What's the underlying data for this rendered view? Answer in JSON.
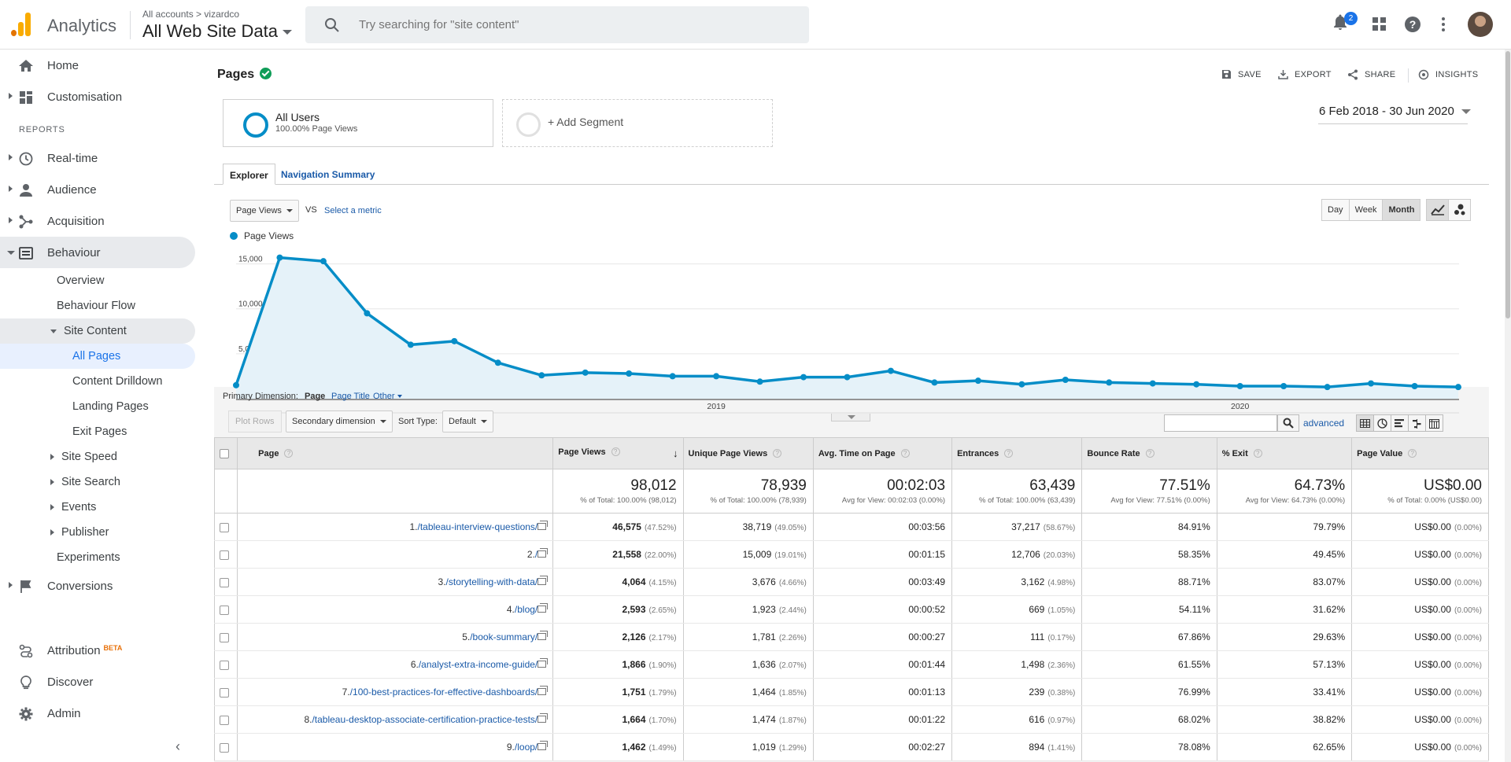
{
  "header": {
    "app_title": "Analytics",
    "breadcrumb_root": "All accounts",
    "breadcrumb_sep": ">",
    "breadcrumb_account": "vizardco",
    "property_view": "All Web Site Data",
    "search_placeholder": "Try searching for \"site content\"",
    "notification_count": "2"
  },
  "sidebar": {
    "home": "Home",
    "customisation": "Customisation",
    "reports_label": "REPORTS",
    "realtime": "Real-time",
    "audience": "Audience",
    "acquisition": "Acquisition",
    "behaviour": "Behaviour",
    "overview": "Overview",
    "behaviour_flow": "Behaviour Flow",
    "site_content": "Site Content",
    "all_pages": "All Pages",
    "content_drilldown": "Content Drilldown",
    "landing_pages": "Landing Pages",
    "exit_pages": "Exit Pages",
    "site_speed": "Site Speed",
    "site_search": "Site Search",
    "events": "Events",
    "publisher": "Publisher",
    "experiments": "Experiments",
    "conversions": "Conversions",
    "attribution": "Attribution",
    "attribution_badge": "BETA",
    "discover": "Discover",
    "admin": "Admin"
  },
  "report": {
    "title": "Pages",
    "save": "SAVE",
    "export": "EXPORT",
    "share": "SHARE",
    "insights": "INSIGHTS",
    "segment_title": "All Users",
    "segment_sub": "100.00% Page Views",
    "add_segment": "+ Add Segment",
    "date_range": "6 Feb 2018 - 30 Jun 2020",
    "tab_explorer": "Explorer",
    "tab_nav_summary": "Navigation Summary",
    "metric_select": "Page Views",
    "vs": "VS",
    "select_metric": "Select a metric",
    "btn_day": "Day",
    "btn_week": "Week",
    "btn_month": "Month",
    "legend": "Page Views",
    "primary_dim_label": "Primary Dimension:",
    "dim_page": "Page",
    "dim_page_title": "Page Title",
    "dim_other": "Other",
    "plot_rows": "Plot Rows",
    "secondary_dim": "Secondary dimension",
    "sort_type_label": "Sort Type:",
    "sort_type": "Default",
    "advanced": "advanced"
  },
  "chart_data": {
    "type": "area",
    "series": [
      {
        "name": "Page Views",
        "values": [
          1500,
          15700,
          15300,
          9500,
          6000,
          6400,
          4000,
          2600,
          2900,
          2800,
          2500,
          2500,
          1900,
          2400,
          2400,
          3100,
          1800,
          2000,
          1600,
          2100,
          1800,
          1700,
          1600,
          1400,
          1400,
          1300,
          1700,
          1400,
          1300
        ]
      }
    ],
    "y_ticks": [
      "15,000",
      "10,000",
      "5,000"
    ],
    "x_ticks": [
      "2019",
      "2020"
    ],
    "ylim": [
      0,
      17500
    ]
  },
  "table": {
    "headers": [
      "Page",
      "Page Views",
      "Unique Page Views",
      "Avg. Time on Page",
      "Entrances",
      "Bounce Rate",
      "% Exit",
      "Page Value"
    ],
    "totals": [
      {
        "big": "98,012",
        "small": "% of Total: 100.00% (98,012)"
      },
      {
        "big": "78,939",
        "small": "% of Total: 100.00% (78,939)"
      },
      {
        "big": "00:02:03",
        "small": "Avg for View: 00:02:03 (0.00%)"
      },
      {
        "big": "63,439",
        "small": "% of Total: 100.00% (63,439)"
      },
      {
        "big": "77.51%",
        "small": "Avg for View: 77.51% (0.00%)"
      },
      {
        "big": "64.73%",
        "small": "Avg for View: 64.73% (0.00%)"
      },
      {
        "big": "US$0.00",
        "small": "% of Total: 0.00% (US$0.00)"
      }
    ],
    "rows": [
      {
        "idx": "1.",
        "page": "/tableau-interview-questions/",
        "pv": "46,575",
        "pv_pct": "(47.52%)",
        "upv": "38,719",
        "upv_pct": "(49.05%)",
        "time": "00:03:56",
        "ent": "37,217",
        "ent_pct": "(58.67%)",
        "bounce": "84.91%",
        "exit": "79.79%",
        "val": "US$0.00",
        "val_pct": "(0.00%)"
      },
      {
        "idx": "2.",
        "page": "/",
        "pv": "21,558",
        "pv_pct": "(22.00%)",
        "upv": "15,009",
        "upv_pct": "(19.01%)",
        "time": "00:01:15",
        "ent": "12,706",
        "ent_pct": "(20.03%)",
        "bounce": "58.35%",
        "exit": "49.45%",
        "val": "US$0.00",
        "val_pct": "(0.00%)"
      },
      {
        "idx": "3.",
        "page": "/storytelling-with-data/",
        "pv": "4,064",
        "pv_pct": "(4.15%)",
        "upv": "3,676",
        "upv_pct": "(4.66%)",
        "time": "00:03:49",
        "ent": "3,162",
        "ent_pct": "(4.98%)",
        "bounce": "88.71%",
        "exit": "83.07%",
        "val": "US$0.00",
        "val_pct": "(0.00%)"
      },
      {
        "idx": "4.",
        "page": "/blog/",
        "pv": "2,593",
        "pv_pct": "(2.65%)",
        "upv": "1,923",
        "upv_pct": "(2.44%)",
        "time": "00:00:52",
        "ent": "669",
        "ent_pct": "(1.05%)",
        "bounce": "54.11%",
        "exit": "31.62%",
        "val": "US$0.00",
        "val_pct": "(0.00%)"
      },
      {
        "idx": "5.",
        "page": "/book-summary/",
        "pv": "2,126",
        "pv_pct": "(2.17%)",
        "upv": "1,781",
        "upv_pct": "(2.26%)",
        "time": "00:00:27",
        "ent": "111",
        "ent_pct": "(0.17%)",
        "bounce": "67.86%",
        "exit": "29.63%",
        "val": "US$0.00",
        "val_pct": "(0.00%)"
      },
      {
        "idx": "6.",
        "page": "/analyst-extra-income-guide/",
        "pv": "1,866",
        "pv_pct": "(1.90%)",
        "upv": "1,636",
        "upv_pct": "(2.07%)",
        "time": "00:01:44",
        "ent": "1,498",
        "ent_pct": "(2.36%)",
        "bounce": "61.55%",
        "exit": "57.13%",
        "val": "US$0.00",
        "val_pct": "(0.00%)"
      },
      {
        "idx": "7.",
        "page": "/100-best-practices-for-effective-dashboards/",
        "pv": "1,751",
        "pv_pct": "(1.79%)",
        "upv": "1,464",
        "upv_pct": "(1.85%)",
        "time": "00:01:13",
        "ent": "239",
        "ent_pct": "(0.38%)",
        "bounce": "76.99%",
        "exit": "33.41%",
        "val": "US$0.00",
        "val_pct": "(0.00%)"
      },
      {
        "idx": "8.",
        "page": "/tableau-desktop-associate-certification-practice-tests/",
        "pv": "1,664",
        "pv_pct": "(1.70%)",
        "upv": "1,474",
        "upv_pct": "(1.87%)",
        "time": "00:01:22",
        "ent": "616",
        "ent_pct": "(0.97%)",
        "bounce": "68.02%",
        "exit": "38.82%",
        "val": "US$0.00",
        "val_pct": "(0.00%)"
      },
      {
        "idx": "9.",
        "page": "/loop/",
        "pv": "1,462",
        "pv_pct": "(1.49%)",
        "upv": "1,019",
        "upv_pct": "(1.29%)",
        "time": "00:02:27",
        "ent": "894",
        "ent_pct": "(1.41%)",
        "bounce": "78.08%",
        "exit": "62.65%",
        "val": "US$0.00",
        "val_pct": "(0.00%)"
      }
    ]
  },
  "colors": {
    "accent": "#058dc7",
    "link": "#1a5aa8",
    "logo_orange": "#f9ab00",
    "logo_dark": "#e37400"
  }
}
